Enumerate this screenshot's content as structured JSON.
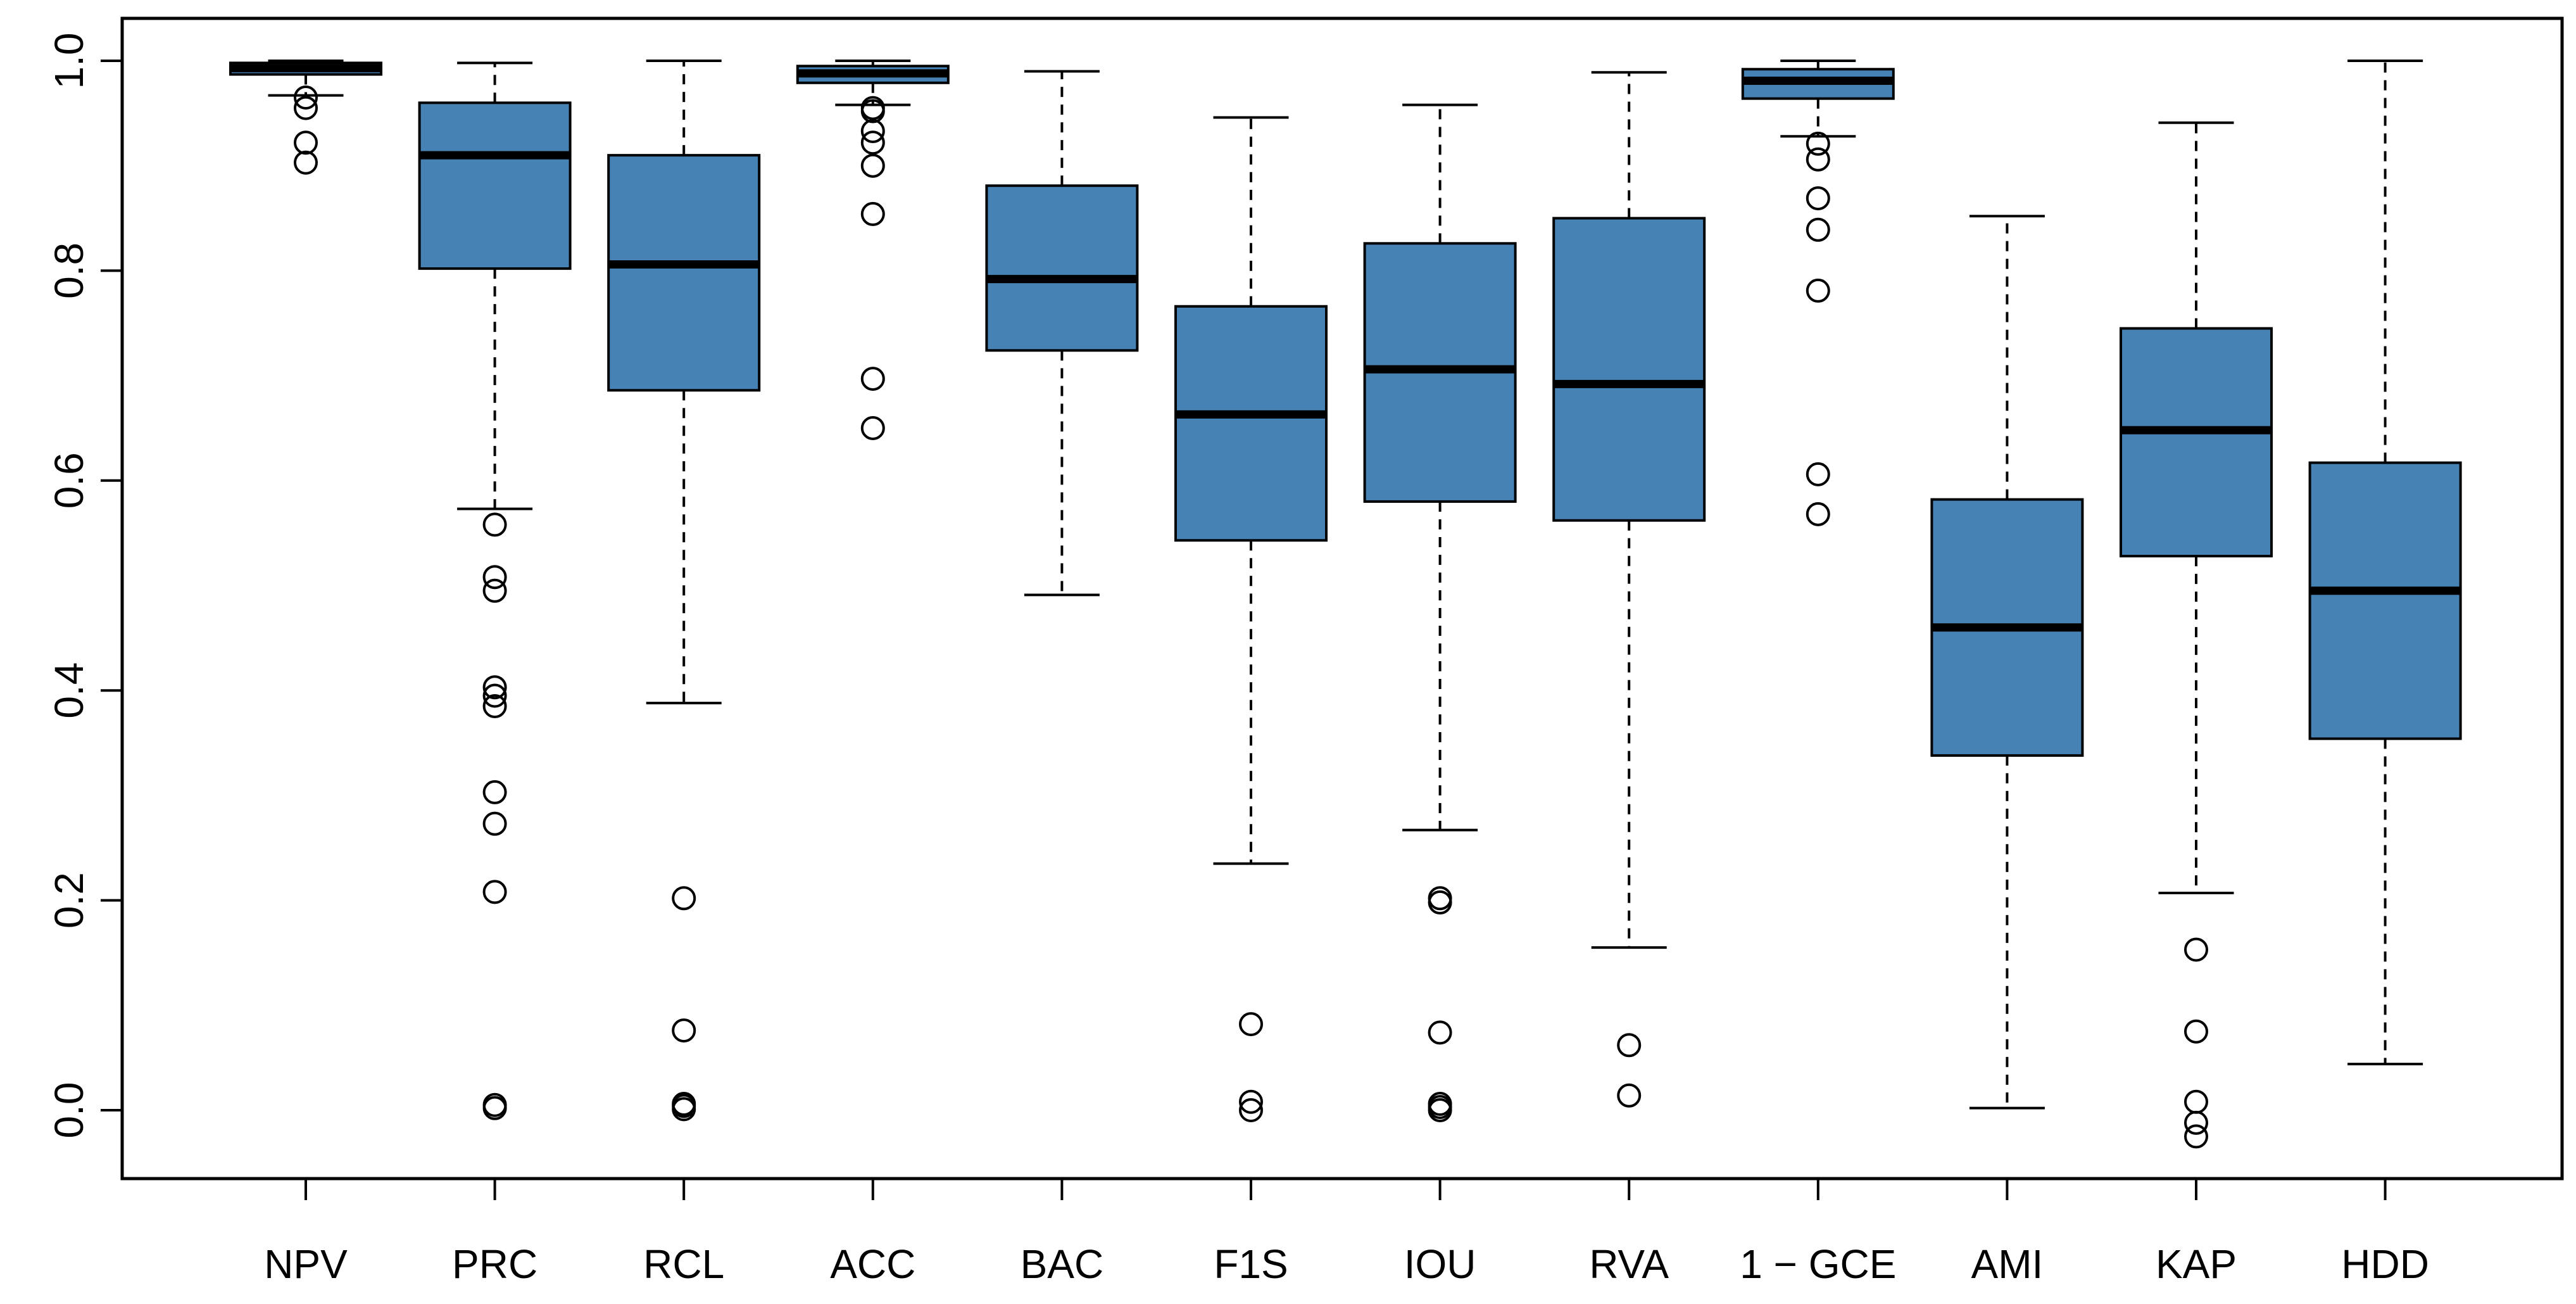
{
  "chart_data": {
    "type": "boxplot",
    "title": "",
    "xlabel": "",
    "ylabel": "",
    "ylim": [
      -0.065,
      1.05
    ],
    "yticks": [
      "0.0",
      "0.2",
      "0.4",
      "0.6",
      "0.8",
      "1.0"
    ],
    "colors": {
      "box_fill": "#4682b4",
      "stroke": "#000000",
      "background": "#ffffff"
    },
    "series": [
      {
        "name": "NPV",
        "lower_whisker": 0.967,
        "q1": 0.987,
        "median": 0.993,
        "q3": 0.998,
        "upper_whisker": 1.0,
        "outliers": [
          0.965,
          0.955,
          0.922,
          0.903
        ]
      },
      {
        "name": "PRC",
        "lower_whisker": 0.573,
        "q1": 0.802,
        "median": 0.91,
        "q3": 0.96,
        "upper_whisker": 0.998,
        "outliers": [
          0.558,
          0.508,
          0.495,
          0.403,
          0.395,
          0.385,
          0.303,
          0.273,
          0.208,
          0.005,
          0.002
        ]
      },
      {
        "name": "RCL",
        "lower_whisker": 0.388,
        "q1": 0.686,
        "median": 0.806,
        "q3": 0.91,
        "upper_whisker": 1.0,
        "outliers": [
          0.202,
          0.076,
          0.006,
          0.004,
          0.001
        ]
      },
      {
        "name": "ACC",
        "lower_whisker": 0.958,
        "q1": 0.979,
        "median": 0.988,
        "q3": 0.995,
        "upper_whisker": 1.0,
        "outliers": [
          0.955,
          0.952,
          0.933,
          0.922,
          0.9,
          0.854,
          0.697,
          0.65
        ]
      },
      {
        "name": "BAC",
        "lower_whisker": 0.491,
        "q1": 0.724,
        "median": 0.792,
        "q3": 0.881,
        "upper_whisker": 0.99,
        "outliers": []
      },
      {
        "name": "F1S",
        "lower_whisker": 0.235,
        "q1": 0.543,
        "median": 0.663,
        "q3": 0.766,
        "upper_whisker": 0.946,
        "outliers": [
          0.082,
          0.008,
          0.0
        ]
      },
      {
        "name": "IOU",
        "lower_whisker": 0.267,
        "q1": 0.58,
        "median": 0.706,
        "q3": 0.826,
        "upper_whisker": 0.958,
        "outliers": [
          0.202,
          0.198,
          0.074,
          0.006,
          0.003,
          0.0
        ]
      },
      {
        "name": "RVA",
        "lower_whisker": 0.155,
        "q1": 0.562,
        "median": 0.692,
        "q3": 0.85,
        "upper_whisker": 0.989,
        "outliers": [
          0.062,
          0.014
        ]
      },
      {
        "name": "1 − GCE",
        "lower_whisker": 0.928,
        "q1": 0.964,
        "median": 0.981,
        "q3": 0.992,
        "upper_whisker": 1.0,
        "outliers": [
          0.921,
          0.906,
          0.869,
          0.839,
          0.781,
          0.606,
          0.568
        ]
      },
      {
        "name": "AMI",
        "lower_whisker": 0.002,
        "q1": 0.338,
        "median": 0.46,
        "q3": 0.582,
        "upper_whisker": 0.852,
        "outliers": []
      },
      {
        "name": "KAP",
        "lower_whisker": 0.207,
        "q1": 0.528,
        "median": 0.648,
        "q3": 0.745,
        "upper_whisker": 0.941,
        "outliers": [
          0.153,
          0.075,
          0.008,
          -0.012,
          -0.025
        ]
      },
      {
        "name": "HDD",
        "lower_whisker": 0.044,
        "q1": 0.354,
        "median": 0.495,
        "q3": 0.617,
        "upper_whisker": 1.0,
        "outliers": []
      }
    ]
  }
}
